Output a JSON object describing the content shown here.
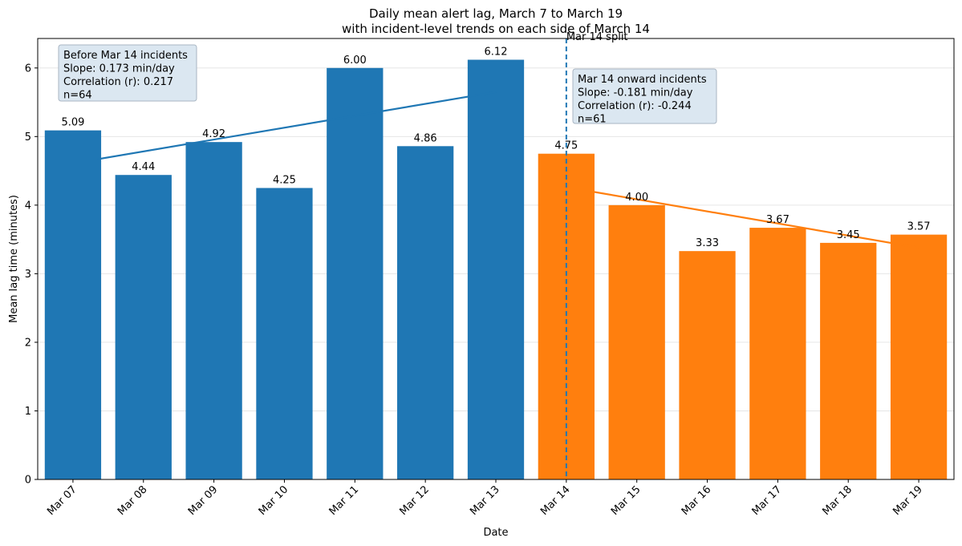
{
  "chart_data": {
    "type": "bar",
    "title": "Daily mean alert lag, March 7 to March 19",
    "subtitle": "with incident-level trends on each side of March 14",
    "xlabel": "Date",
    "ylabel": "Mean lag time (minutes)",
    "ylim": [
      0,
      6.43
    ],
    "yticks": [
      "0",
      "1",
      "2",
      "3",
      "4",
      "5",
      "6"
    ],
    "grid": "horizontal",
    "categories": [
      "Mar 07",
      "Mar 08",
      "Mar 09",
      "Mar 10",
      "Mar 11",
      "Mar 12",
      "Mar 13",
      "Mar 14",
      "Mar 15",
      "Mar 16",
      "Mar 17",
      "Mar 18",
      "Mar 19"
    ],
    "values": [
      5.09,
      4.44,
      4.92,
      4.25,
      6.0,
      4.86,
      6.12,
      4.75,
      4.0,
      3.33,
      3.67,
      3.45,
      3.57
    ],
    "value_labels": [
      "5.09",
      "4.44",
      "4.92",
      "4.25",
      "6.00",
      "4.86",
      "6.12",
      "4.75",
      "4.00",
      "3.33",
      "3.67",
      "3.45",
      "3.57"
    ],
    "series_colors": {
      "before": "#1f77b4",
      "after": "#ff7f0e"
    },
    "split": {
      "index": 7,
      "label": "Mar 14 split",
      "color": "#1f77b4"
    },
    "trends": [
      {
        "name": "before",
        "color": "#1f77b4",
        "x_start": 0.35,
        "y_start": 4.67,
        "x_end": 6.0,
        "y_end": 5.65
      },
      {
        "name": "after",
        "color": "#ff7f0e",
        "x_start": 7.35,
        "y_start": 4.2,
        "x_end": 12.0,
        "y_end": 3.38
      }
    ],
    "annotations": [
      {
        "name": "before-annotation",
        "placement": "top-left",
        "lines": [
          "Before Mar 14 incidents",
          "Slope: 0.173 min/day",
          "Correlation (r): 0.217",
          "n=64"
        ],
        "fill": "#dbe7f1",
        "border": "#a9b6c3"
      },
      {
        "name": "after-annotation",
        "placement": "upper-center-right",
        "lines": [
          "Mar 14 onward incidents",
          "Slope: -0.181 min/day",
          "Correlation (r): -0.244",
          "n=61"
        ],
        "fill": "#dbe7f1",
        "border": "#a9b6c3"
      }
    ]
  }
}
